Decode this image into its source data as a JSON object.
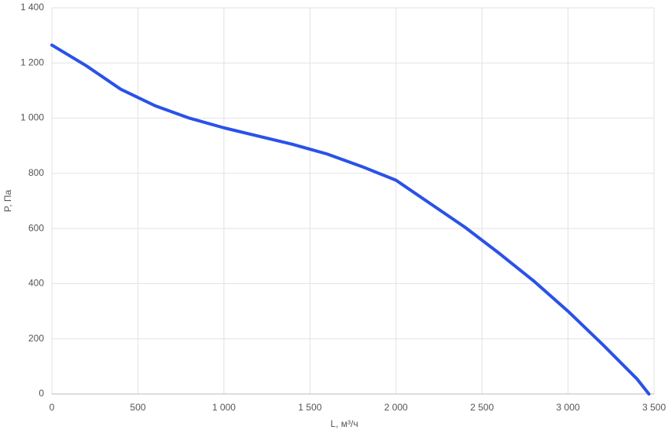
{
  "chart_data": {
    "type": "line",
    "x_label": "L, м³/ч",
    "y_label": "P, Па",
    "x": [
      0,
      200,
      400,
      600,
      800,
      1000,
      1200,
      1400,
      1600,
      1800,
      2000,
      2200,
      2400,
      2600,
      2800,
      3000,
      3200,
      3400,
      3470
    ],
    "series": [
      {
        "color": "#2a52e8",
        "values": [
          1265,
          1190,
          1105,
          1045,
          1000,
          965,
          935,
          905,
          870,
          825,
          775,
          690,
          605,
          510,
          410,
          300,
          180,
          55,
          0
        ]
      }
    ],
    "xlim": [
      0,
      3500
    ],
    "xticks": [
      0,
      500,
      {
        "value": 1000,
        "label": "1 000"
      },
      {
        "value": 1500,
        "label": "1 500"
      },
      {
        "value": 2000,
        "label": "2 000"
      },
      {
        "value": 2500,
        "label": "2 500"
      },
      {
        "value": 3000,
        "label": "3 000"
      },
      {
        "value": 3500,
        "label": "3 500"
      }
    ],
    "ylim": [
      0,
      1400
    ],
    "yticks": [
      0,
      200,
      400,
      600,
      800,
      {
        "value": 1000,
        "label": "1 000"
      },
      {
        "value": 1200,
        "label": "1 200"
      },
      {
        "value": 1400,
        "label": "1 400"
      }
    ],
    "grid": true
  }
}
